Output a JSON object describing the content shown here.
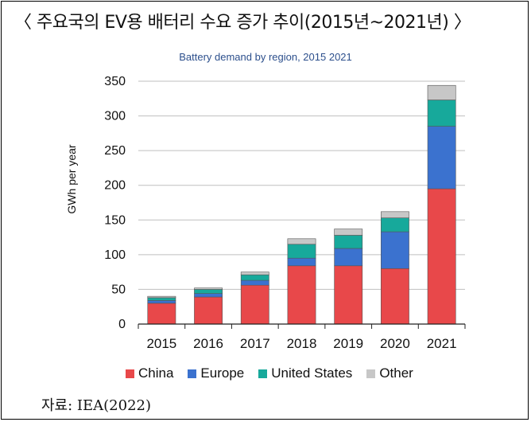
{
  "heading": "〈 주요국의 EV용 배터리 수요 증가 추이(2015년~2021년) 〉",
  "source": "자료: IEA(2022)",
  "colors": {
    "China": "#e8484a",
    "Europe": "#3b72cf",
    "United States": "#17a99b",
    "Other": "#c7c7c7",
    "title": "#2c4f8c",
    "axis": "#222222",
    "grid": "#bfbfbf"
  },
  "chart_data": {
    "type": "bar",
    "stacked": true,
    "title": "Battery demand by region, 2015 2021",
    "xlabel": "",
    "ylabel": "GWh per year",
    "categories": [
      "2015",
      "2016",
      "2017",
      "2018",
      "2019",
      "2020",
      "2021"
    ],
    "series": [
      {
        "name": "China",
        "values": [
          30,
          39,
          56,
          84,
          84,
          80,
          195
        ]
      },
      {
        "name": "Europe",
        "values": [
          4,
          5,
          7,
          11,
          25,
          53,
          90
        ]
      },
      {
        "name": "United States",
        "values": [
          4,
          6,
          8,
          20,
          19,
          20,
          38
        ]
      },
      {
        "name": "Other",
        "values": [
          2,
          2,
          4,
          8,
          9,
          9,
          21
        ]
      }
    ],
    "ylim": [
      0,
      350
    ],
    "yticks": [
      0,
      50,
      100,
      150,
      200,
      250,
      300,
      350
    ],
    "grid": true,
    "legend_position": "bottom"
  }
}
